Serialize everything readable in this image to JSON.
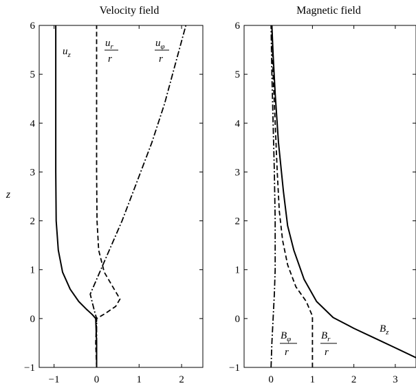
{
  "chart_data": [
    {
      "type": "line",
      "title": "Velocity field",
      "ylabel": "z",
      "xlim": [
        -1.35,
        2.5
      ],
      "ylim": [
        -1,
        6
      ],
      "xticks": [
        "−1",
        "0",
        "1",
        "2"
      ],
      "yticks": [
        "−1",
        "0",
        "1",
        "2",
        "3",
        "4",
        "5",
        "6"
      ],
      "series": [
        {
          "name": "u_z",
          "style": "solid",
          "points": [
            [
              0,
              -1
            ],
            [
              0,
              -0.5
            ],
            [
              -0.02,
              0
            ],
            [
              -0.1,
              0.08
            ],
            [
              -0.25,
              0.2
            ],
            [
              -0.42,
              0.35
            ],
            [
              -0.62,
              0.6
            ],
            [
              -0.8,
              0.95
            ],
            [
              -0.9,
              1.4
            ],
            [
              -0.95,
              2
            ],
            [
              -0.96,
              3
            ],
            [
              -0.96,
              4
            ],
            [
              -0.96,
              5
            ],
            [
              -0.96,
              6
            ]
          ]
        },
        {
          "name": "u_r / r",
          "style": "dashed",
          "points": [
            [
              0,
              -1
            ],
            [
              -0.02,
              -0.5
            ],
            [
              0,
              0
            ],
            [
              0.2,
              0.1
            ],
            [
              0.45,
              0.25
            ],
            [
              0.55,
              0.4
            ],
            [
              0.4,
              0.62
            ],
            [
              0.18,
              0.95
            ],
            [
              0.05,
              1.4
            ],
            [
              0.01,
              2
            ],
            [
              0,
              3
            ],
            [
              0,
              4
            ],
            [
              0,
              5
            ],
            [
              0,
              6
            ]
          ]
        },
        {
          "name": "u_φ / r",
          "style": "dashdot",
          "points": [
            [
              0,
              -1
            ],
            [
              0,
              0
            ],
            [
              -0.05,
              0.15
            ],
            [
              -0.15,
              0.5
            ],
            [
              0,
              0.8
            ],
            [
              0.15,
              1.1
            ],
            [
              0.35,
              1.5
            ],
            [
              0.6,
              2
            ],
            [
              0.95,
              2.8
            ],
            [
              1.3,
              3.6
            ],
            [
              1.6,
              4.4
            ],
            [
              1.85,
              5.2
            ],
            [
              2.1,
              6
            ]
          ]
        }
      ]
    },
    {
      "type": "line",
      "title": "Magnetic field",
      "xlim": [
        -0.65,
        3.5
      ],
      "ylim": [
        -1,
        6
      ],
      "xticks": [
        "0",
        "1",
        "2",
        "3"
      ],
      "yticks": [
        "−1",
        "0",
        "1",
        "2",
        "3",
        "4",
        "5",
        "6"
      ],
      "series": [
        {
          "name": "B_z",
          "style": "solid",
          "points": [
            [
              3.5,
              -0.8
            ],
            [
              3.0,
              -0.6
            ],
            [
              2.5,
              -0.4
            ],
            [
              2.0,
              -0.2
            ],
            [
              1.5,
              0.02
            ],
            [
              1.1,
              0.35
            ],
            [
              0.8,
              0.8
            ],
            [
              0.55,
              1.4
            ],
            [
              0.4,
              1.9
            ],
            [
              0.3,
              2.6
            ],
            [
              0.18,
              3.6
            ],
            [
              0.1,
              4.6
            ],
            [
              0.05,
              5.4
            ],
            [
              0.02,
              6
            ]
          ]
        },
        {
          "name": "B_r / r",
          "style": "dashed",
          "points": [
            [
              1,
              -1
            ],
            [
              1,
              -0.5
            ],
            [
              1,
              0.05
            ],
            [
              0.85,
              0.35
            ],
            [
              0.6,
              0.65
            ],
            [
              0.4,
              1.1
            ],
            [
              0.28,
              1.6
            ],
            [
              0.2,
              2.2
            ],
            [
              0.15,
              3
            ],
            [
              0.1,
              4
            ],
            [
              0.05,
              5
            ],
            [
              0.02,
              6
            ]
          ]
        },
        {
          "name": "B_φ / r",
          "style": "dashdot",
          "points": [
            [
              0,
              -1
            ],
            [
              0.02,
              -0.5
            ],
            [
              0.05,
              0
            ],
            [
              0.08,
              0.5
            ],
            [
              0.1,
              1
            ],
            [
              0.1,
              2
            ],
            [
              0.08,
              3
            ],
            [
              0.05,
              4
            ],
            [
              0.02,
              5
            ],
            [
              0,
              6
            ]
          ]
        }
      ]
    }
  ]
}
